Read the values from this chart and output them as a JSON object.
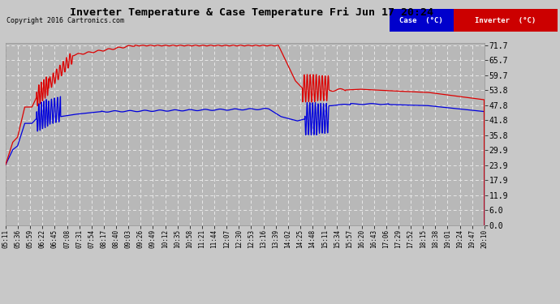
{
  "title": "Inverter Temperature & Case Temperature Fri Jun 17 20:24",
  "copyright": "Copyright 2016 Cartronics.com",
  "yticks": [
    0.0,
    6.0,
    11.9,
    17.9,
    23.9,
    29.9,
    35.8,
    41.8,
    47.8,
    53.8,
    59.7,
    65.7,
    71.7
  ],
  "ymin": 0.0,
  "ymax": 71.7,
  "bg_color": "#c8c8c8",
  "plot_bg_color": "#b8b8b8",
  "grid_color": "#e8e8e8",
  "case_color": "#0000dd",
  "inverter_color": "#dd0000",
  "legend_case_bg": "#0000cc",
  "legend_inverter_bg": "#cc0000",
  "xtick_labels": [
    "05:11",
    "05:36",
    "05:59",
    "06:22",
    "06:45",
    "07:08",
    "07:31",
    "07:54",
    "08:17",
    "08:40",
    "09:03",
    "09:26",
    "09:49",
    "10:12",
    "10:35",
    "10:58",
    "11:21",
    "11:44",
    "12:07",
    "12:30",
    "12:53",
    "13:16",
    "13:39",
    "14:02",
    "14:25",
    "14:48",
    "15:11",
    "15:34",
    "15:57",
    "16:20",
    "16:43",
    "17:06",
    "17:29",
    "17:52",
    "18:15",
    "18:38",
    "19:01",
    "19:24",
    "19:47",
    "20:10"
  ]
}
